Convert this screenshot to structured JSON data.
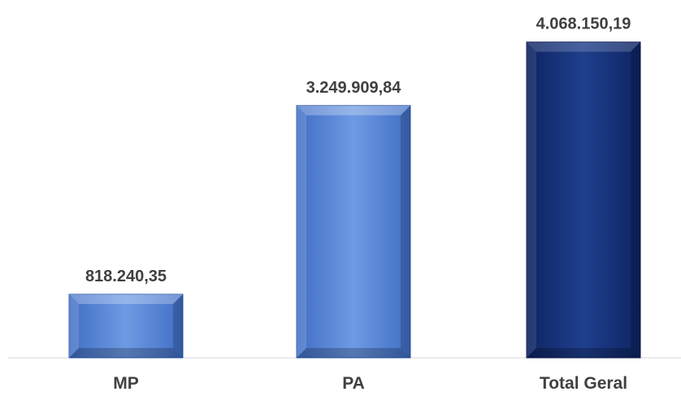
{
  "chart_data": {
    "type": "bar",
    "categories": [
      "MP",
      "PA",
      "Total Geral"
    ],
    "values": [
      818240.35,
      3249909.84,
      4068150.19
    ],
    "value_labels": [
      "818.240,35",
      "3.249.909,84",
      "4.068.150,19"
    ],
    "bar_colors": [
      "#4472C4",
      "#4472C4",
      "#1F3A7A"
    ],
    "ylim": [
      0,
      4400000
    ],
    "grid": false,
    "legend": "none"
  }
}
